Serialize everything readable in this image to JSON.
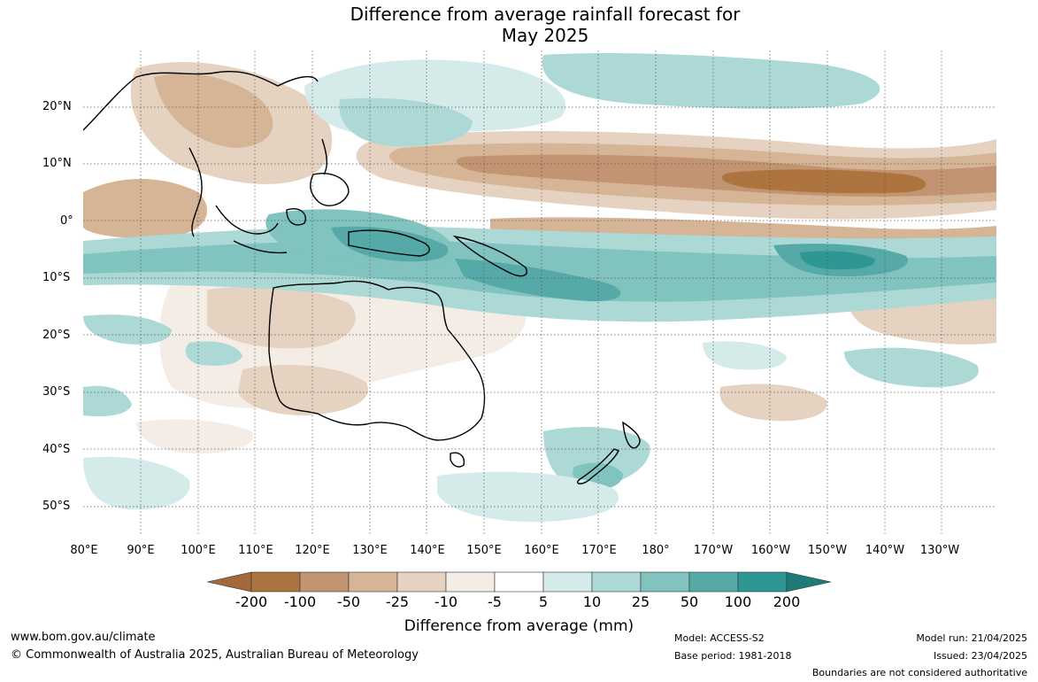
{
  "title": {
    "line1": "Difference from average rainfall forecast for",
    "line2": "May 2025"
  },
  "map": {
    "lat_labels": [
      "20°N",
      "10°N",
      "0°",
      "10°S",
      "20°S",
      "30°S",
      "40°S",
      "50°S"
    ],
    "lon_labels": [
      "80°E",
      "90°E",
      "100°E",
      "110°E",
      "120°E",
      "130°E",
      "140°E",
      "150°E",
      "160°E",
      "170°E",
      "180°",
      "170°W",
      "160°W",
      "150°W",
      "140°W",
      "130°W"
    ]
  },
  "legend": {
    "ticks": [
      "-200",
      "-100",
      "-50",
      "-25",
      "-10",
      "-5",
      "5",
      "10",
      "25",
      "50",
      "100",
      "200"
    ],
    "colors": [
      "#a3693a",
      "#ad743f",
      "#c29471",
      "#d6b597",
      "#e6d2c0",
      "#f3ede6",
      "#ffffff",
      "#d5ebea",
      "#acd9d6",
      "#80c3bf",
      "#55aaa8",
      "#2e9793",
      "#1f7a78"
    ],
    "caption": "Difference from average (mm)"
  },
  "footer": {
    "website": "www.bom.gov.au/climate",
    "copyright": "© Commonwealth of Australia 2025, Australian Bureau of Meteorology",
    "model": "Model: ACCESS-S2",
    "base_period": "Base period: 1981-2018",
    "model_run": "Model run: 21/04/2025",
    "issued": "Issued: 23/04/2025",
    "disclaimer": "Boundaries are not considered authoritative"
  }
}
